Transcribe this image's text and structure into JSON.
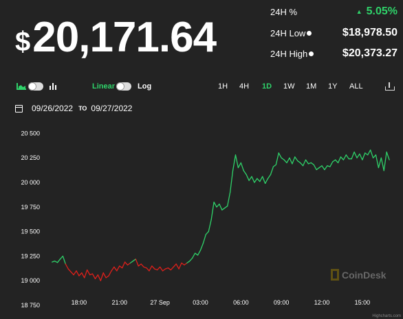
{
  "price": {
    "currency": "$",
    "value": "20,171.64"
  },
  "stats": [
    {
      "label": "24H %",
      "value": "5.05%",
      "direction": "up",
      "info": false
    },
    {
      "label": "24H Low",
      "value": "$18,978.50",
      "direction": "",
      "info": true
    },
    {
      "label": "24H High",
      "value": "$20,373.27",
      "direction": "",
      "info": true
    }
  ],
  "toolbar": {
    "scale_linear": "Linear",
    "scale_log": "Log",
    "ranges": [
      "1H",
      "4H",
      "1D",
      "1W",
      "1M",
      "1Y",
      "ALL"
    ],
    "active_range": "1D"
  },
  "date_range": {
    "from": "09/26/2022",
    "separator": "TO",
    "to": "09/27/2022"
  },
  "watermark": "CoinDesk",
  "credit": "Highcharts.com",
  "colors": {
    "up": "#2fd36a",
    "down": "#e0201b",
    "background": "#232323"
  },
  "chart_data": {
    "type": "line",
    "y_ticks": [
      18750,
      19000,
      19250,
      19500,
      19750,
      20000,
      20250,
      20500
    ],
    "y_tick_labels": [
      "18 750",
      "19 000",
      "19 250",
      "19 500",
      "19 750",
      "20 000",
      "20 250",
      "20 500"
    ],
    "ylim": [
      18750,
      20600
    ],
    "x_ticks": [
      2,
      5,
      8,
      11,
      14,
      17,
      20,
      23
    ],
    "x_tick_labels": [
      "18:00",
      "21:00",
      "27 Sep",
      "03:00",
      "06:00",
      "09:00",
      "12:00",
      "15:00"
    ],
    "xlim": [
      -0.8,
      25.3
    ],
    "grid": false,
    "series": [
      {
        "x": [
          0.0,
          0.2,
          0.4,
          0.6,
          0.8,
          1.0,
          1.2,
          1.4,
          1.6,
          1.8,
          2.0,
          2.2,
          2.4,
          2.6,
          2.8,
          3.0,
          3.2,
          3.4,
          3.6,
          3.8,
          4.0,
          4.2,
          4.4,
          4.6,
          4.8,
          5.0,
          5.2,
          5.4,
          5.6,
          5.8,
          6.0,
          6.2,
          6.4,
          6.6,
          6.8,
          7.0,
          7.2,
          7.4,
          7.6,
          7.8,
          8.0,
          8.2,
          8.4,
          8.6,
          8.8,
          9.0,
          9.2,
          9.4,
          9.6,
          9.8,
          10.0,
          10.2,
          10.4,
          10.6,
          10.8,
          11.0,
          11.2,
          11.4,
          11.6,
          11.8,
          12.0,
          12.2,
          12.4,
          12.6,
          12.8,
          13.0,
          13.2,
          13.4,
          13.6,
          13.8,
          14.0,
          14.2,
          14.4,
          14.6,
          14.8,
          15.0,
          15.2,
          15.4,
          15.6,
          15.8,
          16.0,
          16.2,
          16.4,
          16.6,
          16.8,
          17.0,
          17.2,
          17.4,
          17.6,
          17.8,
          18.0,
          18.2,
          18.4,
          18.6,
          18.8,
          19.0,
          19.2,
          19.4,
          19.6,
          19.8,
          20.0,
          20.2,
          20.4,
          20.6,
          20.8,
          21.0,
          21.2,
          21.4,
          21.6,
          21.8,
          22.0,
          22.2,
          22.4,
          22.6,
          22.8,
          23.0,
          23.2,
          23.4,
          23.6,
          23.8,
          24.0,
          24.2,
          24.4,
          24.6,
          24.8,
          25.0
        ],
        "y": [
          19190,
          19200,
          19185,
          19220,
          19250,
          19170,
          19120,
          19090,
          19060,
          19100,
          19050,
          19080,
          19030,
          19110,
          19060,
          19070,
          19020,
          19060,
          19000,
          19080,
          19030,
          19050,
          19100,
          19140,
          19100,
          19150,
          19130,
          19190,
          19160,
          19180,
          19200,
          19220,
          19150,
          19170,
          19140,
          19130,
          19100,
          19150,
          19120,
          19110,
          19140,
          19100,
          19120,
          19130,
          19110,
          19140,
          19170,
          19120,
          19180,
          19160,
          19180,
          19200,
          19230,
          19280,
          19260,
          19310,
          19380,
          19470,
          19500,
          19620,
          19800,
          19750,
          19780,
          19720,
          19740,
          19760,
          19900,
          20120,
          20280,
          20150,
          20200,
          20120,
          20080,
          20020,
          20060,
          20000,
          20040,
          20010,
          20060,
          19990,
          20040,
          20080,
          20160,
          20180,
          20300,
          20250,
          20230,
          20200,
          20250,
          20190,
          20260,
          20220,
          20200,
          20170,
          20230,
          20190,
          20200,
          20180,
          20130,
          20150,
          20170,
          20130,
          20170,
          20160,
          20210,
          20230,
          20200,
          20260,
          20230,
          20280,
          20240,
          20240,
          20310,
          20250,
          20290,
          20230,
          20300,
          20280,
          20330,
          20250,
          20280,
          20150,
          20250,
          20120,
          20310,
          20230
        ]
      }
    ]
  }
}
